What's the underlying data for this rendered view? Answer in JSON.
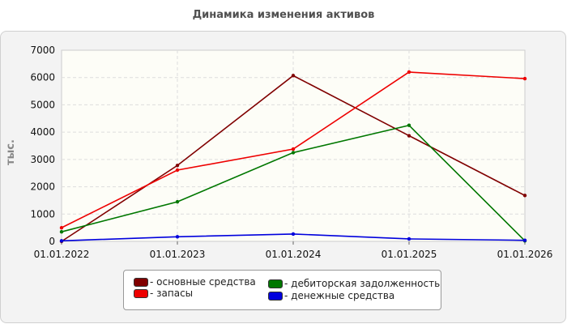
{
  "title": "Динамика изменения активов",
  "chart_data": {
    "type": "line",
    "title": "Динамика изменения активов",
    "xlabel": "",
    "ylabel": "тыс.",
    "categories": [
      "01.01.2022",
      "01.01.2023",
      "01.01.2024",
      "01.01.2025",
      "01.01.2026"
    ],
    "ylim": [
      0,
      7000
    ],
    "yticks": [
      0,
      1000,
      2000,
      3000,
      4000,
      5000,
      6000,
      7000
    ],
    "grid": true,
    "legend_position": "bottom",
    "series": [
      {
        "name": "- основные средства",
        "color": "#800000",
        "values": [
          0,
          2780,
          6070,
          3870,
          1680
        ]
      },
      {
        "name": "- запасы",
        "color": "#ee0000",
        "values": [
          500,
          2610,
          3380,
          6200,
          5960
        ]
      },
      {
        "name": "- дебиторская задолженность",
        "color": "#007700",
        "values": [
          350,
          1450,
          3250,
          4250,
          20
        ]
      },
      {
        "name": "- денежные средства",
        "color": "#0000dd",
        "values": [
          20,
          170,
          270,
          90,
          40
        ]
      }
    ]
  }
}
